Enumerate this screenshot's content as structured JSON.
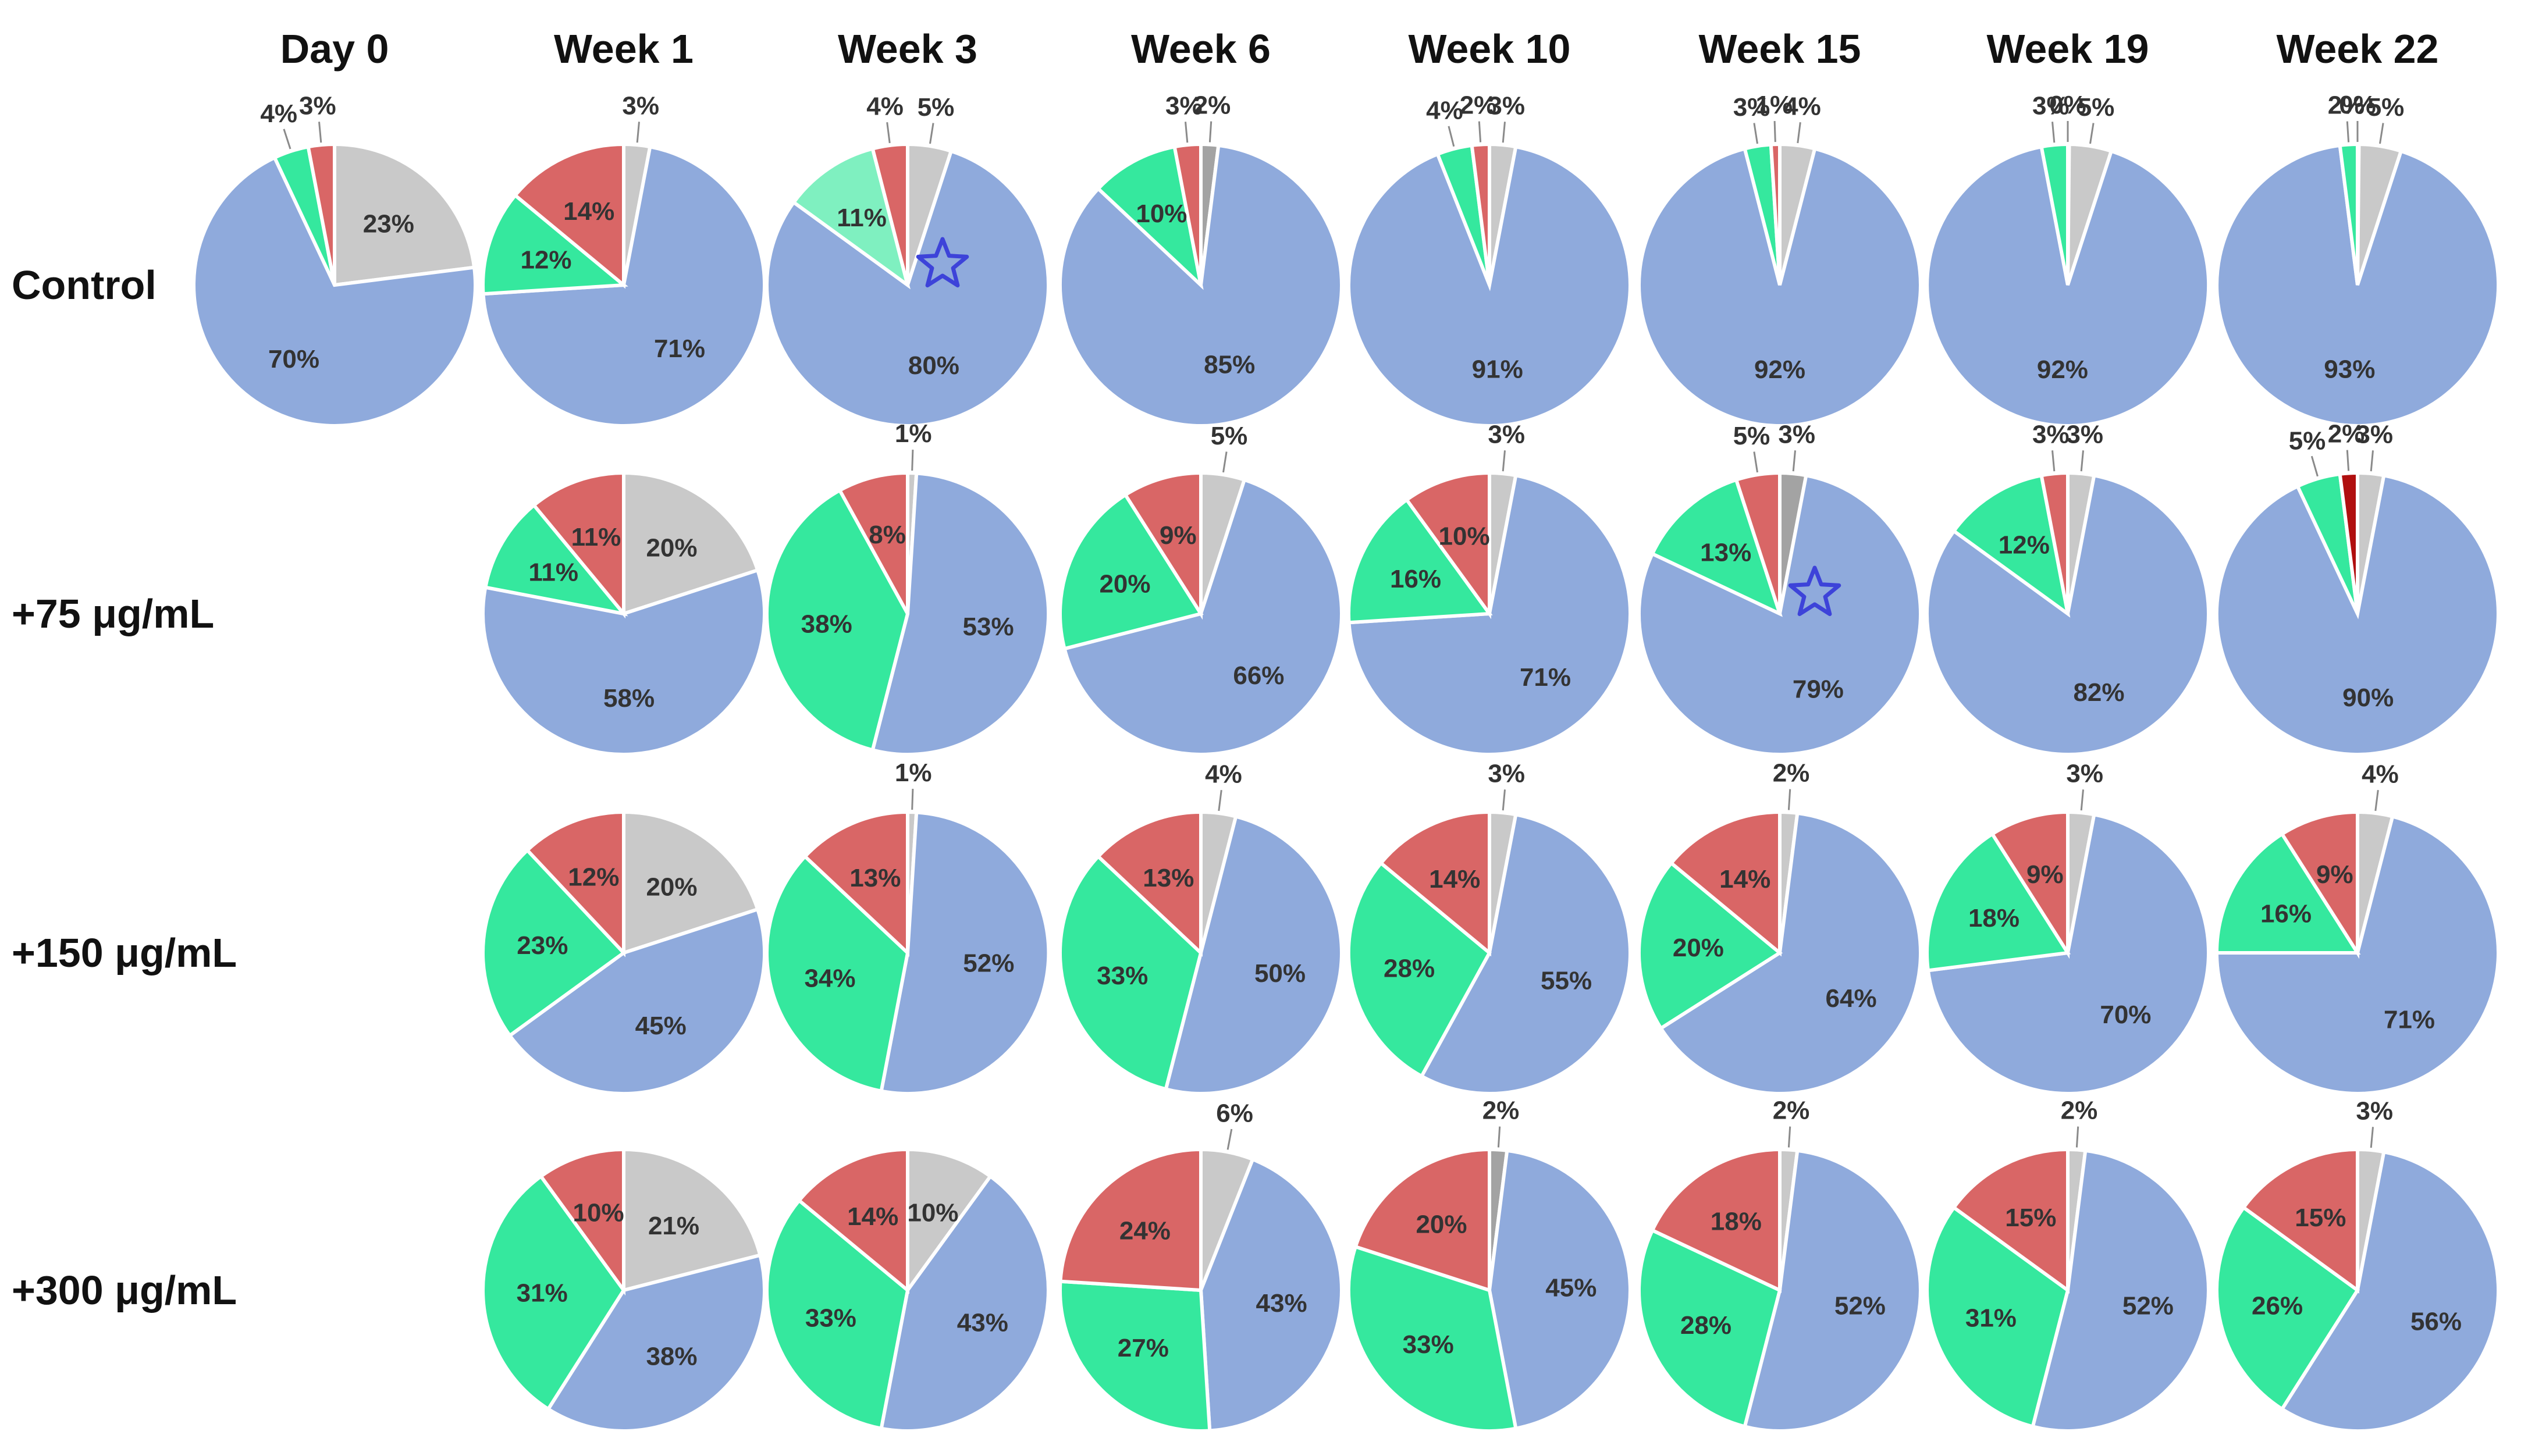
{
  "chart_data": {
    "type": "pie",
    "title": "",
    "columns": [
      "Day 0",
      "Week 1",
      "Week 3",
      "Week 6",
      "Week 10",
      "Week 15",
      "Week 19",
      "Week 22"
    ],
    "rows": [
      {
        "label": "Control",
        "pies": [
          {
            "values": [
              23,
              70,
              4,
              3
            ],
            "labels": [
              "23%",
              "70%",
              "4%",
              "3%"
            ]
          },
          {
            "values": [
              3,
              71,
              12,
              14
            ],
            "labels": [
              "3%",
              "71%",
              "12%",
              "14%"
            ]
          },
          {
            "values": [
              5,
              80,
              11,
              4
            ],
            "labels": [
              "5%",
              "80%",
              "11%",
              "4%"
            ],
            "star": true,
            "green_light": true
          },
          {
            "values": [
              2,
              85,
              10,
              3
            ],
            "labels": [
              "2%",
              "85%",
              "10%",
              "3%"
            ],
            "dark_gray": true
          },
          {
            "values": [
              3,
              91,
              4,
              2
            ],
            "labels": [
              "3%",
              "91%",
              "4%",
              "2%"
            ]
          },
          {
            "values": [
              4,
              92,
              3,
              1
            ],
            "labels": [
              "4%",
              "92%",
              "3%",
              "1%"
            ]
          },
          {
            "values": [
              5,
              92,
              3,
              0
            ],
            "labels": [
              "5%",
              "92%",
              "3%",
              "0%"
            ]
          },
          {
            "values": [
              5,
              93,
              2,
              0
            ],
            "labels": [
              "5%",
              "93%",
              "2%",
              "0%"
            ]
          }
        ]
      },
      {
        "label": "+75 μg/mL",
        "pies": [
          null,
          {
            "values": [
              20,
              58,
              11,
              11
            ],
            "labels": [
              "20%",
              "58%",
              "11%",
              "11%"
            ]
          },
          {
            "values": [
              1,
              53,
              38,
              8
            ],
            "labels": [
              "1%",
              "53%",
              "38%",
              "8%"
            ]
          },
          {
            "values": [
              5,
              66,
              20,
              9
            ],
            "labels": [
              "5%",
              "66%",
              "20%",
              "9%"
            ]
          },
          {
            "values": [
              3,
              71,
              16,
              10
            ],
            "labels": [
              "3%",
              "71%",
              "16%",
              "10%"
            ]
          },
          {
            "values": [
              3,
              79,
              13,
              5
            ],
            "labels": [
              "3%",
              "79%",
              "13%",
              "5%"
            ],
            "star": true,
            "dark_gray": true
          },
          {
            "values": [
              3,
              82,
              12,
              3
            ],
            "labels": [
              "3%",
              "82%",
              "12%",
              "3%"
            ]
          },
          {
            "values": [
              3,
              90,
              5,
              2
            ],
            "labels": [
              "3%",
              "90%",
              "5%",
              "2%"
            ],
            "red_dark": true
          }
        ]
      },
      {
        "label": "+150 μg/mL",
        "pies": [
          null,
          {
            "values": [
              20,
              45,
              23,
              12
            ],
            "labels": [
              "20%",
              "45%",
              "23%",
              "12%"
            ]
          },
          {
            "values": [
              1,
              52,
              34,
              13
            ],
            "labels": [
              "1%",
              "52%",
              "34%",
              "13%"
            ]
          },
          {
            "values": [
              4,
              50,
              33,
              13
            ],
            "labels": [
              "4%",
              "50%",
              "33%",
              "13%"
            ]
          },
          {
            "values": [
              3,
              55,
              28,
              14
            ],
            "labels": [
              "3%",
              "55%",
              "28%",
              "14%"
            ]
          },
          {
            "values": [
              2,
              64,
              20,
              14
            ],
            "labels": [
              "2%",
              "64%",
              "20%",
              "14%"
            ]
          },
          {
            "values": [
              3,
              70,
              18,
              9
            ],
            "labels": [
              "3%",
              "70%",
              "18%",
              "9%"
            ]
          },
          {
            "values": [
              4,
              71,
              16,
              9
            ],
            "labels": [
              "4%",
              "71%",
              "16%",
              "9%"
            ]
          }
        ]
      },
      {
        "label": "+300 μg/mL",
        "pies": [
          null,
          {
            "values": [
              21,
              38,
              31,
              10
            ],
            "labels": [
              "21%",
              "38%",
              "31%",
              "10%"
            ]
          },
          {
            "values": [
              10,
              43,
              33,
              14
            ],
            "labels": [
              "10%",
              "43%",
              "33%",
              "14%"
            ]
          },
          {
            "values": [
              6,
              43,
              27,
              24
            ],
            "labels": [
              "6%",
              "43%",
              "27%",
              "24%"
            ]
          },
          {
            "values": [
              2,
              45,
              33,
              20
            ],
            "labels": [
              "2%",
              "45%",
              "33%",
              "20%"
            ],
            "dark_gray": true
          },
          {
            "values": [
              2,
              52,
              28,
              18
            ],
            "labels": [
              "2%",
              "52%",
              "28%",
              "18%"
            ]
          },
          {
            "values": [
              2,
              52,
              31,
              15
            ],
            "labels": [
              "2%",
              "52%",
              "31%",
              "15%"
            ]
          },
          {
            "values": [
              3,
              56,
              26,
              15
            ],
            "labels": [
              "3%",
              "56%",
              "26%",
              "15%"
            ]
          }
        ]
      }
    ],
    "slice_order": [
      "gray",
      "blue",
      "green",
      "red"
    ],
    "colors": {
      "gray": "#c9c9c9",
      "gray_dark": "#a3a3a3",
      "blue": "#8faadc",
      "green": "#35e89e",
      "green_light": "#7ff0c0",
      "red": "#d96666",
      "red_dark": "#b00f0f",
      "star": "#3d43d9"
    }
  }
}
